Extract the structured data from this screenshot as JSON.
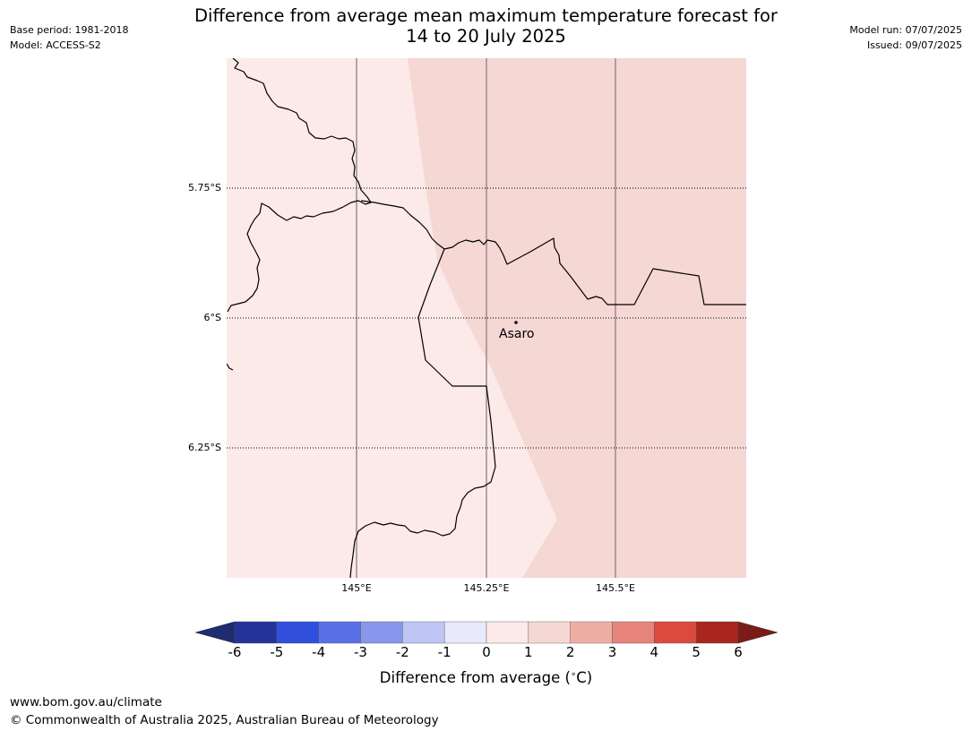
{
  "title_line1": "Difference from average mean maximum temperature forecast for",
  "title_line2": "14 to 20 July 2025",
  "meta_left": {
    "base_period": "Base period: 1981-2018",
    "model": "Model: ACCESS-S2"
  },
  "meta_right": {
    "model_run": "Model run: 07/07/2025",
    "issued": "Issued: 09/07/2025"
  },
  "map": {
    "lat_ticks": [
      "5.75°S",
      "6°S",
      "6.25°S"
    ],
    "lon_ticks": [
      "145°E",
      "145.25°E",
      "145.5°E"
    ],
    "place": {
      "name": "Asaro"
    },
    "fill_categories": [
      {
        "range": "0 to 1",
        "color": "#fbeae8"
      },
      {
        "range": "1 to 2",
        "color": "#f5d7d4"
      }
    ]
  },
  "colorbar": {
    "label": "Difference from average ($^\\circ$C)",
    "label_text": "Difference from average (",
    "label_unit": "C)",
    "ticks": [
      "-6",
      "-5",
      "-4",
      "-3",
      "-2",
      "-1",
      "0",
      "1",
      "2",
      "3",
      "4",
      "5",
      "6"
    ],
    "colors": [
      "#24339a",
      "#2f4fdc",
      "#5a70e6",
      "#8897ec",
      "#bfc6f4",
      "#e8eafb",
      "#fbeae8",
      "#f5d7d4",
      "#eeaea6",
      "#e6847c",
      "#dc4a3e",
      "#a9261e"
    ],
    "under_color": "#202c70",
    "over_color": "#7a1d18"
  },
  "footer": {
    "url": "www.bom.gov.au/climate",
    "copyright": "© Commonwealth of Australia 2025, Australian Bureau of Meteorology"
  }
}
